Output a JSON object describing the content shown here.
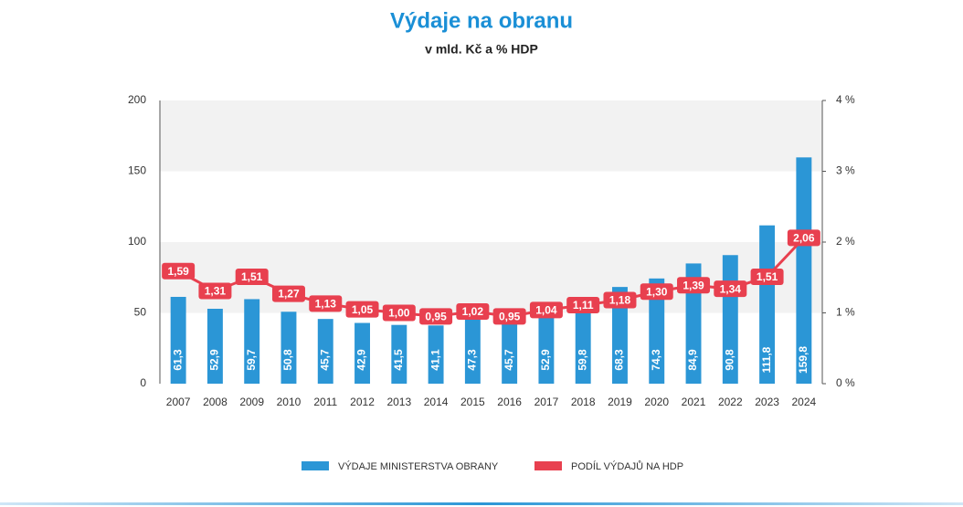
{
  "chart_data": {
    "type": "bar_line",
    "title": "Výdaje na obranu",
    "subtitle": "v mld. Kč a % HDP",
    "categories": [
      "2007",
      "2008",
      "2009",
      "2010",
      "2011",
      "2012",
      "2013",
      "2014",
      "2015",
      "2016",
      "2017",
      "2018",
      "2019",
      "2020",
      "2021",
      "2022",
      "2023",
      "2024"
    ],
    "series": [
      {
        "name": "VÝDAJE MINISTERSTVA OBRANY",
        "type": "bar",
        "color": "#2b96d6",
        "values": [
          61.3,
          52.9,
          59.7,
          50.8,
          45.7,
          42.9,
          41.5,
          41.1,
          47.3,
          45.7,
          52.9,
          59.8,
          68.3,
          74.3,
          84.9,
          90.8,
          111.8,
          159.8
        ],
        "value_labels": [
          "61,3",
          "52,9",
          "59,7",
          "50,8",
          "45,7",
          "42,9",
          "41,5",
          "41,1",
          "47,3",
          "45,7",
          "52,9",
          "59,8",
          "68,3",
          "74,3",
          "84,9",
          "90,8",
          "111,8",
          "159,8"
        ]
      },
      {
        "name": "PODÍL VÝDAJŮ NA HDP",
        "type": "line",
        "axis": "y2",
        "color": "#e8404f",
        "values": [
          1.59,
          1.31,
          1.51,
          1.27,
          1.13,
          1.05,
          1.0,
          0.95,
          1.02,
          0.95,
          1.04,
          1.11,
          1.18,
          1.3,
          1.39,
          1.34,
          1.51,
          2.06
        ],
        "value_labels": [
          "1,59",
          "1,31",
          "1,51",
          "1,27",
          "1,13",
          "1,05",
          "1,00",
          "0,95",
          "1,02",
          "0,95",
          "1,04",
          "1,11",
          "1,18",
          "1,30",
          "1,39",
          "1,34",
          "1,51",
          "2,06"
        ]
      }
    ],
    "ylim": [
      0,
      200
    ],
    "yticks": [
      0,
      50,
      100,
      150,
      200
    ],
    "y2lim": [
      0,
      4
    ],
    "y2ticks": [
      {
        "value": 0,
        "label": "0 %"
      },
      {
        "value": 1,
        "label": "1 %"
      },
      {
        "value": 2,
        "label": "2 %"
      },
      {
        "value": 3,
        "label": "3 %"
      },
      {
        "value": 4,
        "label": "4 %"
      }
    ],
    "grid": true
  }
}
